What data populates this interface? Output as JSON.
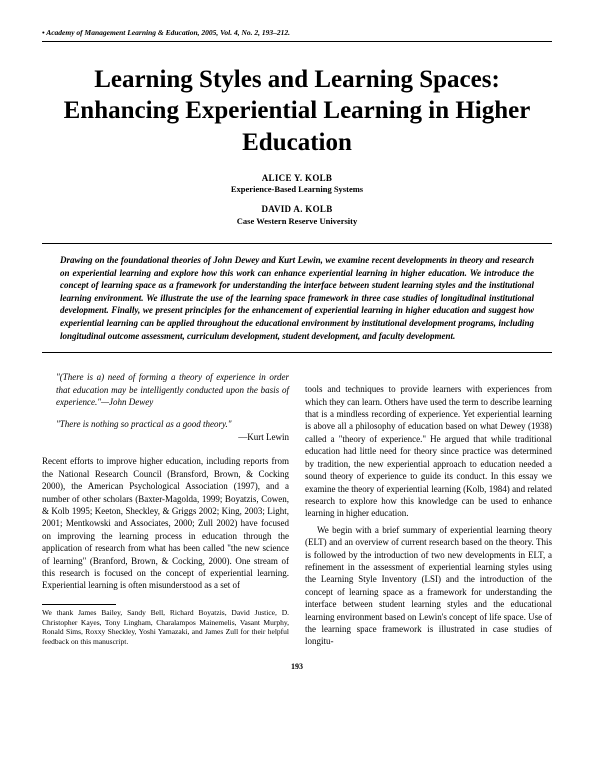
{
  "header": {
    "journal_line": "• Academy of Management Learning & Education, 2005, Vol. 4, No. 2, 193–212."
  },
  "title": "Learning Styles and Learning Spaces: Enhancing Experiential Learning in Higher Education",
  "authors": [
    {
      "name": "ALICE Y. KOLB",
      "affiliation": "Experience-Based Learning Systems"
    },
    {
      "name": "DAVID A. KOLB",
      "affiliation": "Case Western Reserve University"
    }
  ],
  "abstract": "Drawing on the foundational theories of John Dewey and Kurt Lewin, we examine recent developments in theory and research on experiential learning and explore how this work can enhance experiential learning in higher education. We introduce the concept of learning space as a framework for understanding the interface between student learning styles and the institutional learning environment. We illustrate the use of the learning space framework in three case studies of longitudinal institutional development. Finally, we present principles for the enhancement of experiential learning in higher education and suggest how experiential learning can be applied throughout the educational environment by institutional development programs, including longitudinal outcome assessment, curriculum development, student development, and faculty development.",
  "epigraphs": [
    {
      "quote": "\"(There is a) need of forming a theory of experience in order that education may be intelligently conducted upon the basis of experience.\"—John Dewey",
      "attrib": ""
    },
    {
      "quote": "\"There is nothing so practical as a good theory.\"",
      "attrib": "—Kurt Lewin"
    }
  ],
  "body": {
    "col1_p1": "Recent efforts to improve higher education, including reports from the National Research Council (Bransford, Brown, & Cocking 2000), the American Psychological Association (1997), and a number of other scholars (Baxter-Magolda, 1999; Boyatzis, Cowen, & Kolb 1995; Keeton, Sheckley, & Griggs 2002; King, 2003; Light, 2001; Mentkowski and Associates, 2000; Zull 2002) have focused on improving the learning process in education through the application of research from what has been called \"the new science of learning\" (Branford, Brown, & Cocking, 2000). One stream of this research is focused on the concept of experiential learning. Experiential learning is often misunderstood as a set of",
    "col2_p1": "tools and techniques to provide learners with experiences from which they can learn. Others have used the term to describe learning that is a mindless recording of experience. Yet experiential learning is above all a philosophy of education based on what Dewey (1938) called a \"theory of experience.\" He argued that while traditional education had little need for theory since practice was determined by tradition, the new experiential approach to education needed a sound theory of experience to guide its conduct. In this essay we examine the theory of experiential learning (Kolb, 1984) and related research to explore how this knowledge can be used to enhance learning in higher education.",
    "col2_p2": "We begin with a brief summary of experiential learning theory (ELT) and an overview of current research based on the theory. This is followed by the introduction of two new developments in ELT, a refinement in the assessment of experiential learning styles using the Learning Style Inventory (LSI) and the introduction of the concept of learning space as a framework for understanding the interface between student learning styles and the educational learning environment based on Lewin's concept of life space. Use of the learning space framework is illustrated in case studies of longitu-"
  },
  "footnote": "We thank James Bailey, Sandy Bell, Richard Boyatzis, David Justice, D. Christopher Kayes, Tony Lingham, Charalampos Mainemelis, Vasant Murphy, Ronald Sims, Roxxy Sheckley, Yoshi Yamazaki, and James Zull for their helpful feedback on this manuscript.",
  "page_number": "193"
}
